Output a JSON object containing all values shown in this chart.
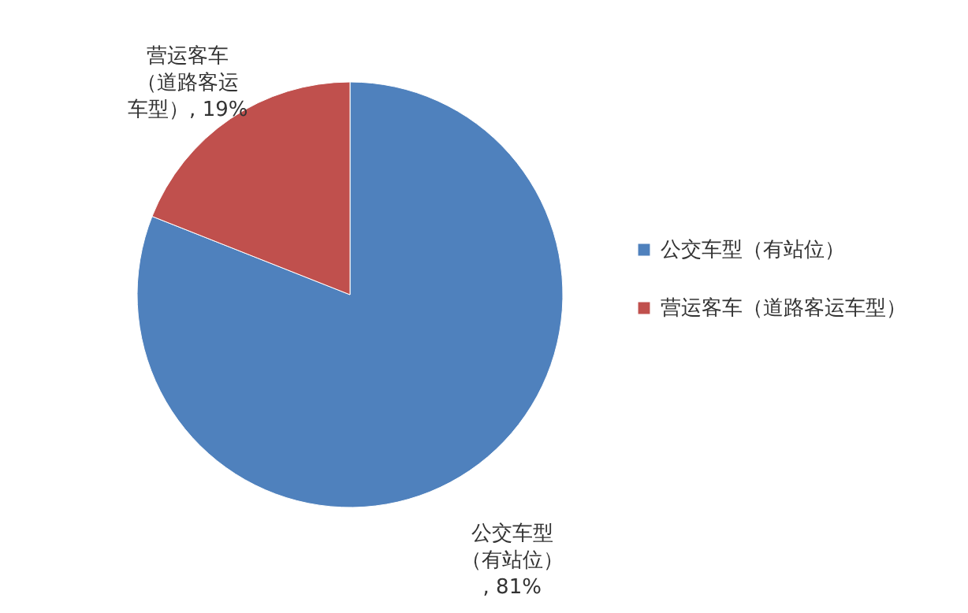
{
  "chart_data": {
    "type": "pie",
    "categories": [
      "公交车型（有站位）",
      "营运客车（道路客运车型）"
    ],
    "values": [
      81,
      19
    ],
    "colors": [
      "#4f81bd",
      "#c0504d"
    ],
    "value_labels": [
      "公交车型（有站位）, 81%",
      "营运客车（道路客运车型）, 19%"
    ],
    "legend": "right"
  }
}
